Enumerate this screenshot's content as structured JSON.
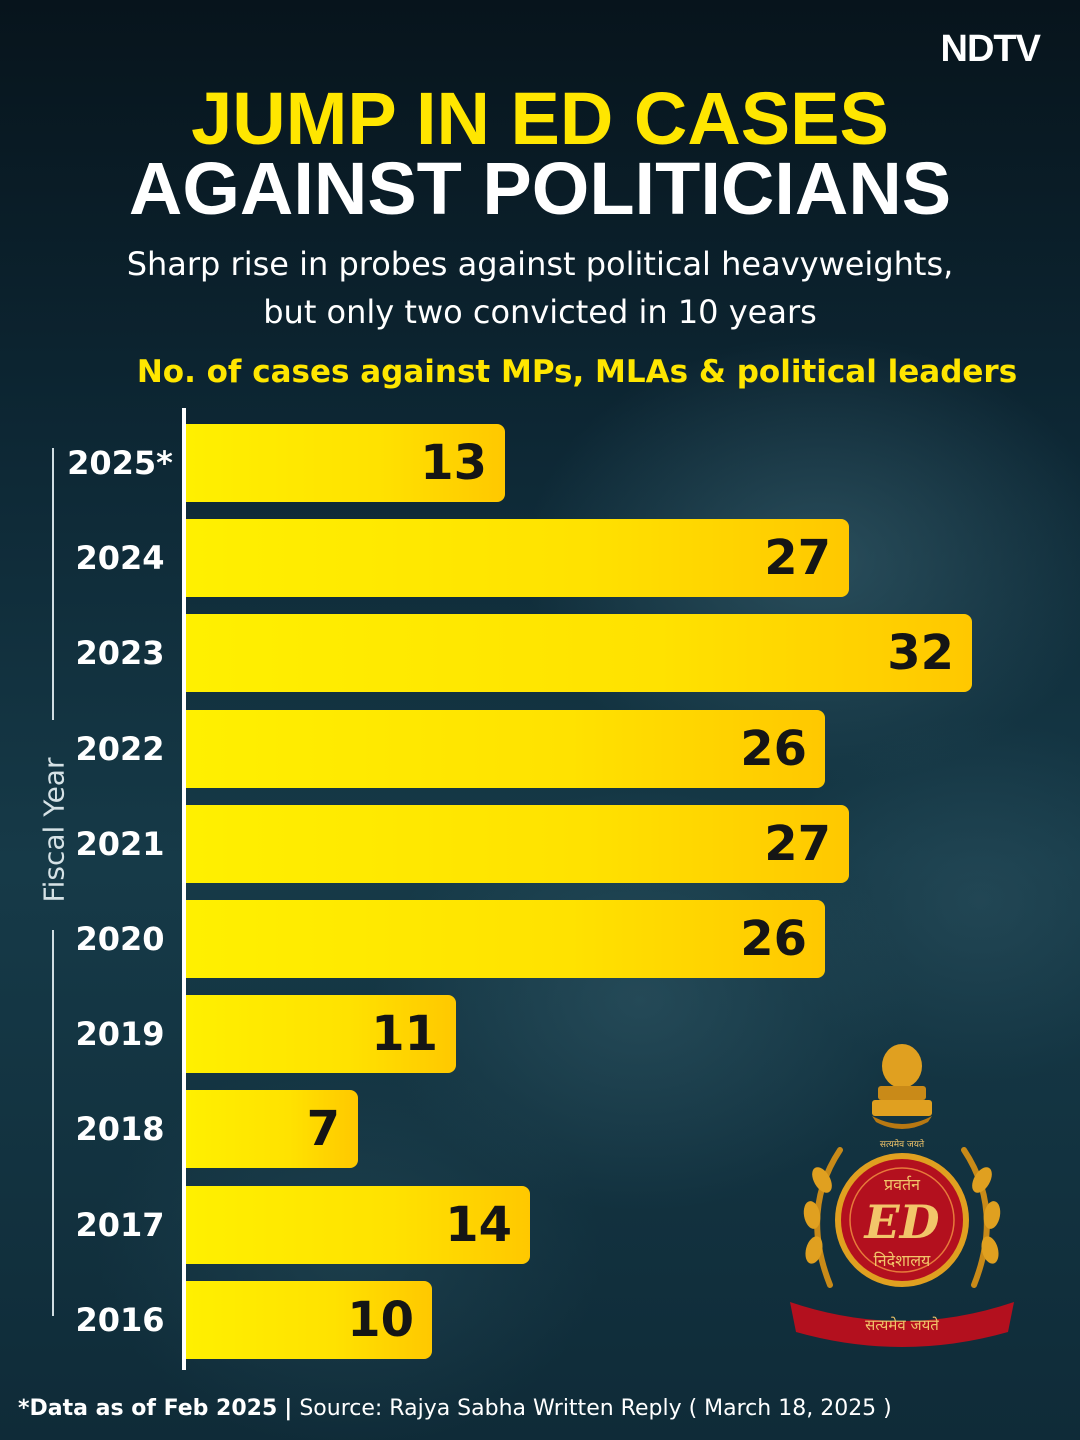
{
  "brand": {
    "logo": "NDTV"
  },
  "header": {
    "title_line1": "JUMP IN ED CASES",
    "title_line2": "AGAINST POLITICIANS",
    "subtitle_line1": "Sharp rise in probes against political heavyweights,",
    "subtitle_line2": "but only two convicted in 10 years"
  },
  "chart_data": {
    "type": "bar",
    "orientation": "horizontal",
    "title": "No. of cases against MPs, MLAs & political leaders",
    "ylabel": "Fiscal Year",
    "xlabel": "",
    "categories": [
      "2025*",
      "2024",
      "2023",
      "2022",
      "2021",
      "2020",
      "2019",
      "2018",
      "2017",
      "2016"
    ],
    "values": [
      13,
      27,
      32,
      26,
      27,
      26,
      11,
      7,
      14,
      10
    ],
    "xlim": [
      0,
      32
    ],
    "colors": {
      "bar": "#ffe600",
      "value_text": "#151515",
      "category_text": "#ffffff"
    }
  },
  "emblem": {
    "top_text": "सत्यमेव जयते",
    "line1": "प्रवर्तन",
    "monogram": "ED",
    "line2": "निदेशालय",
    "ribbon": "सत्यमेव जयते"
  },
  "footer": {
    "note": "*Data as of Feb 2025",
    "separator": "|",
    "source": "Source: Rajya Sabha Written Reply ( March 18, 2025 )"
  }
}
